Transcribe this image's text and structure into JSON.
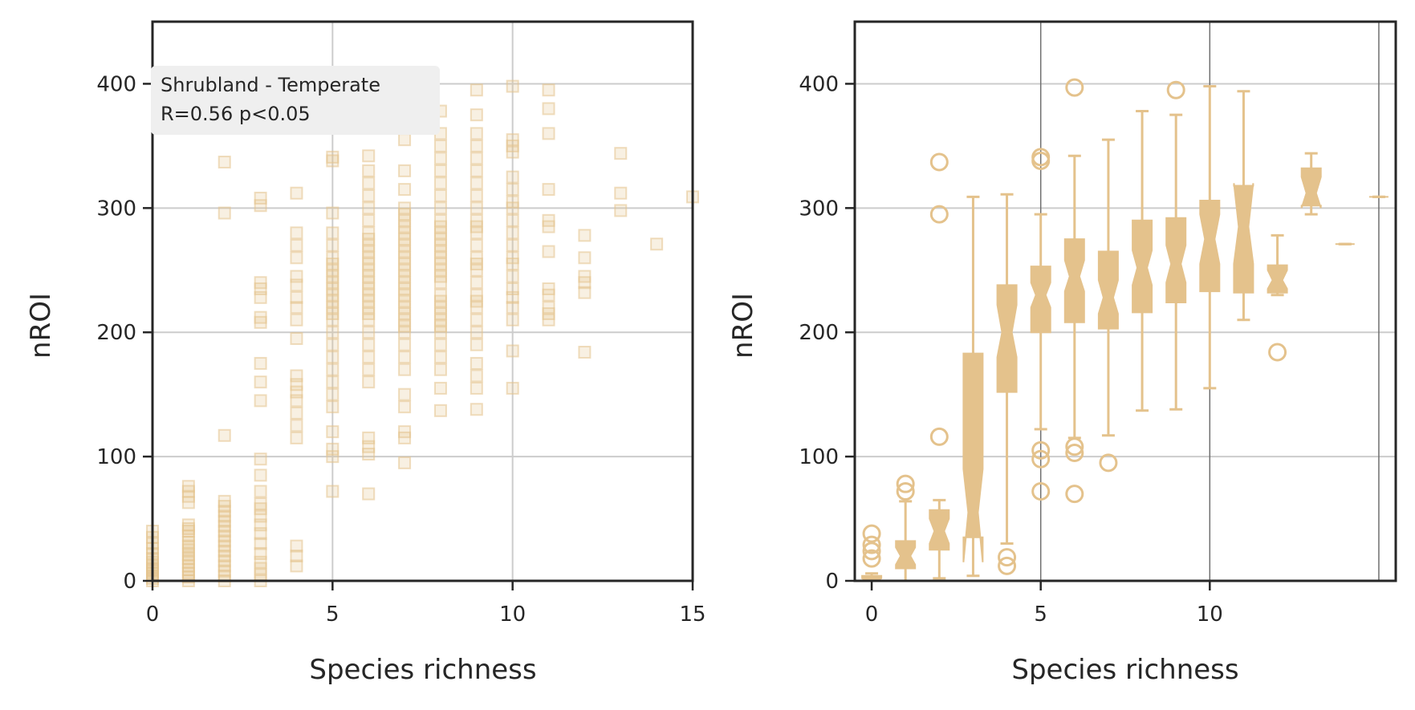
{
  "colors": {
    "marker": "#e4c28c",
    "frame": "#262626",
    "grid": "#cccccc",
    "vline": "#6f6f6f",
    "annotation_bg": "#efefef"
  },
  "chart_data": [
    {
      "type": "scatter",
      "marker": "square",
      "xlabel": "Species richness",
      "ylabel": "nROI",
      "xlim": [
        0,
        15
      ],
      "ylim": [
        0,
        450
      ],
      "xticks": [
        0,
        5,
        10,
        15
      ],
      "yticks": [
        0,
        100,
        200,
        300,
        400
      ],
      "grid": true,
      "annotation": {
        "line1": "Shrubland - Temperate",
        "line2": "R=0.56  p<0.05"
      },
      "points_by_richness": [
        {
          "x": 0,
          "y": [
            0,
            2,
            4,
            6,
            8,
            10,
            12,
            15,
            18,
            22,
            26,
            30,
            35,
            40
          ]
        },
        {
          "x": 1,
          "y": [
            0,
            3,
            6,
            9,
            12,
            15,
            18,
            21,
            25,
            28,
            31,
            36,
            40,
            42,
            45,
            63,
            68,
            72,
            76
          ]
        },
        {
          "x": 2,
          "y": [
            0,
            4,
            8,
            12,
            16,
            20,
            24,
            28,
            32,
            36,
            40,
            44,
            48,
            52,
            56,
            60,
            64,
            117,
            296,
            337
          ]
        },
        {
          "x": 3,
          "y": [
            0,
            5,
            10,
            15,
            22,
            30,
            38,
            45,
            52,
            58,
            62,
            72,
            85,
            98,
            145,
            160,
            175,
            208,
            212,
            228,
            235,
            240,
            302,
            308
          ]
        },
        {
          "x": 4,
          "y": [
            12,
            20,
            28,
            115,
            125,
            135,
            145,
            152,
            158,
            165,
            195,
            210,
            220,
            228,
            238,
            245,
            260,
            270,
            280,
            312
          ]
        },
        {
          "x": 5,
          "y": [
            72,
            100,
            106,
            120,
            140,
            150,
            160,
            170,
            180,
            190,
            200,
            210,
            215,
            220,
            225,
            230,
            235,
            240,
            245,
            250,
            255,
            260,
            270,
            280,
            296,
            338,
            341
          ]
        },
        {
          "x": 6,
          "y": [
            70,
            102,
            108,
            115,
            160,
            170,
            180,
            190,
            200,
            210,
            215,
            220,
            225,
            230,
            235,
            240,
            245,
            250,
            255,
            260,
            265,
            270,
            275,
            280,
            290,
            300,
            310,
            320,
            330,
            342
          ]
        },
        {
          "x": 7,
          "y": [
            95,
            115,
            120,
            140,
            150,
            170,
            180,
            190,
            200,
            205,
            210,
            215,
            220,
            225,
            230,
            235,
            240,
            245,
            250,
            255,
            260,
            265,
            270,
            275,
            280,
            285,
            290,
            295,
            300,
            315,
            330,
            355
          ]
        },
        {
          "x": 8,
          "y": [
            137,
            155,
            170,
            180,
            190,
            200,
            205,
            210,
            215,
            220,
            225,
            230,
            240,
            245,
            250,
            255,
            260,
            265,
            270,
            275,
            280,
            285,
            290,
            300,
            310,
            320,
            330,
            340,
            350,
            360,
            378
          ]
        },
        {
          "x": 9,
          "y": [
            138,
            155,
            165,
            175,
            190,
            200,
            210,
            220,
            225,
            230,
            240,
            250,
            255,
            260,
            270,
            280,
            285,
            290,
            300,
            310,
            320,
            330,
            340,
            350,
            360,
            375,
            395
          ]
        },
        {
          "x": 10,
          "y": [
            155,
            185,
            210,
            220,
            228,
            235,
            245,
            255,
            260,
            270,
            280,
            290,
            300,
            305,
            315,
            325,
            345,
            350,
            355,
            398
          ]
        },
        {
          "x": 11,
          "y": [
            210,
            215,
            220,
            230,
            235,
            265,
            285,
            290,
            315,
            360,
            380,
            395
          ]
        },
        {
          "x": 12,
          "y": [
            184,
            232,
            240,
            245,
            260,
            278
          ]
        },
        {
          "x": 13,
          "y": [
            298,
            312,
            344
          ]
        },
        {
          "x": 14,
          "y": [
            271
          ]
        },
        {
          "x": 15,
          "y": [
            309
          ]
        }
      ]
    },
    {
      "type": "box",
      "notched": true,
      "xlabel": "Species richness",
      "ylabel": "nROI",
      "xlim": [
        -0.5,
        15.5
      ],
      "ylim": [
        0,
        450
      ],
      "xticks": [
        0,
        5,
        10
      ],
      "yticks": [
        0,
        100,
        200,
        300,
        400
      ],
      "grid": true,
      "vertical_lines": [
        5,
        10,
        15
      ],
      "boxes": [
        {
          "x": 0,
          "q1": 0,
          "median": 0,
          "q3": 4,
          "notch_lo": 0,
          "notch_hi": 2,
          "whisker_lo": 0,
          "whisker_hi": 6,
          "fliers": [
            18,
            24,
            29,
            38
          ]
        },
        {
          "x": 1,
          "q1": 10,
          "median": 20,
          "q3": 32,
          "notch_lo": 13,
          "notch_hi": 27,
          "whisker_lo": 0,
          "whisker_hi": 64,
          "fliers": [
            72,
            78
          ]
        },
        {
          "x": 2,
          "q1": 25,
          "median": 40,
          "q3": 57,
          "notch_lo": 30,
          "notch_hi": 50,
          "whisker_lo": 2,
          "whisker_hi": 65,
          "fliers": [
            116,
            295,
            337
          ]
        },
        {
          "x": 3,
          "q1": 35,
          "median": 55,
          "q3": 183,
          "notch_lo": 15,
          "notch_hi": 90,
          "whisker_lo": 4,
          "whisker_hi": 309,
          "fliers": []
        },
        {
          "x": 4,
          "q1": 152,
          "median": 200,
          "q3": 238,
          "notch_lo": 180,
          "notch_hi": 222,
          "whisker_lo": 30,
          "whisker_hi": 311,
          "fliers": [
            12,
            19
          ]
        },
        {
          "x": 5,
          "q1": 200,
          "median": 230,
          "q3": 253,
          "notch_lo": 220,
          "notch_hi": 240,
          "whisker_lo": 122,
          "whisker_hi": 295,
          "fliers": [
            72,
            98,
            105,
            338,
            341
          ]
        },
        {
          "x": 6,
          "q1": 208,
          "median": 245,
          "q3": 275,
          "notch_lo": 233,
          "notch_hi": 258,
          "whisker_lo": 115,
          "whisker_hi": 342,
          "fliers": [
            70,
            103,
            108,
            397
          ]
        },
        {
          "x": 7,
          "q1": 203,
          "median": 228,
          "q3": 265,
          "notch_lo": 215,
          "notch_hi": 242,
          "whisker_lo": 117,
          "whisker_hi": 355,
          "fliers": [
            95
          ]
        },
        {
          "x": 8,
          "q1": 216,
          "median": 252,
          "q3": 290,
          "notch_lo": 238,
          "notch_hi": 266,
          "whisker_lo": 137,
          "whisker_hi": 378,
          "fliers": []
        },
        {
          "x": 9,
          "q1": 224,
          "median": 255,
          "q3": 292,
          "notch_lo": 240,
          "notch_hi": 270,
          "whisker_lo": 138,
          "whisker_hi": 375,
          "fliers": [
            395
          ]
        },
        {
          "x": 10,
          "q1": 233,
          "median": 275,
          "q3": 306,
          "notch_lo": 255,
          "notch_hi": 295,
          "whisker_lo": 155,
          "whisker_hi": 398,
          "fliers": []
        },
        {
          "x": 11,
          "q1": 232,
          "median": 285,
          "q3": 318,
          "notch_lo": 255,
          "notch_hi": 320,
          "whisker_lo": 210,
          "whisker_hi": 394,
          "fliers": []
        },
        {
          "x": 12,
          "q1": 232,
          "median": 242,
          "q3": 254,
          "notch_lo": 235,
          "notch_hi": 250,
          "whisker_lo": 230,
          "whisker_hi": 278,
          "fliers": [
            184
          ]
        },
        {
          "x": 13,
          "q1": 302,
          "median": 312,
          "q3": 332,
          "notch_lo": 300,
          "notch_hi": 325,
          "whisker_lo": 295,
          "whisker_hi": 344,
          "fliers": []
        },
        {
          "x": 14,
          "q1": 271,
          "median": 271,
          "q3": 271,
          "notch_lo": 271,
          "notch_hi": 271,
          "whisker_lo": 271,
          "whisker_hi": 271,
          "fliers": []
        },
        {
          "x": 15,
          "q1": 309,
          "median": 309,
          "q3": 309,
          "notch_lo": 309,
          "notch_hi": 309,
          "whisker_lo": 309,
          "whisker_hi": 309,
          "fliers": []
        }
      ]
    }
  ]
}
